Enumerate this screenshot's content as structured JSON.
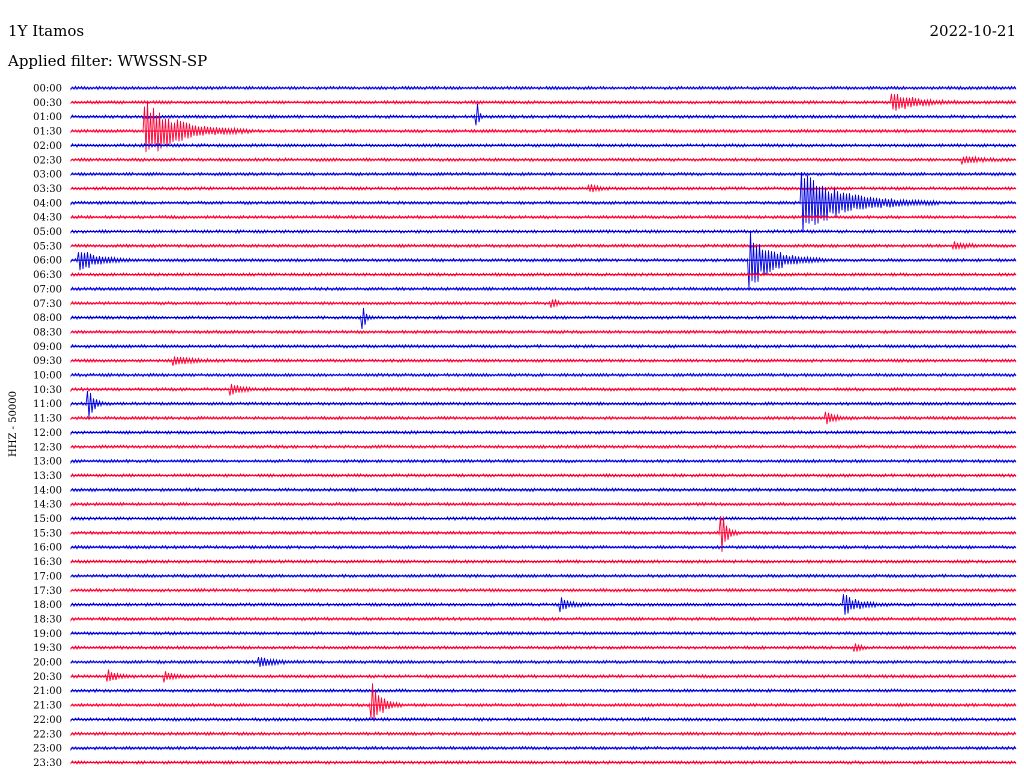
{
  "header": {
    "station": "1Y Itamos",
    "date": "2022-10-21",
    "filter_text": "Applied filter: WWSSN-SP"
  },
  "colors": {
    "even_trace": "#0000e0",
    "odd_trace": "#ff0033",
    "background": "#ffffff"
  },
  "chart_data": {
    "type": "line",
    "ylabel": "HHZ - 50000",
    "row_labels": [
      "00:00",
      "00:30",
      "01:00",
      "01:30",
      "02:00",
      "02:30",
      "03:00",
      "03:30",
      "04:00",
      "04:30",
      "05:00",
      "05:30",
      "06:00",
      "06:30",
      "07:00",
      "07:30",
      "08:00",
      "08:30",
      "09:00",
      "09:30",
      "10:00",
      "10:30",
      "11:00",
      "11:30",
      "12:00",
      "12:30",
      "13:00",
      "13:30",
      "14:00",
      "14:30",
      "15:00",
      "15:30",
      "16:00",
      "16:30",
      "17:00",
      "17:30",
      "18:00",
      "18:30",
      "19:00",
      "19:30",
      "20:00",
      "20:30",
      "21:00",
      "21:30",
      "22:00",
      "22:30",
      "23:00",
      "23:30"
    ],
    "trace_color_order": [
      "blue",
      "red"
    ],
    "events": [
      {
        "row": "00:30",
        "x_fraction": 0.87,
        "amplitude": 0.9,
        "duration": 0.05
      },
      {
        "row": "01:00",
        "x_fraction": 0.43,
        "amplitude": 1.2,
        "duration": 0.004
      },
      {
        "row": "01:30",
        "x_fraction": 0.08,
        "amplitude": 2.8,
        "duration": 0.07
      },
      {
        "row": "02:30",
        "x_fraction": 0.945,
        "amplitude": 0.35,
        "duration": 0.03
      },
      {
        "row": "03:30",
        "x_fraction": 0.55,
        "amplitude": 0.3,
        "duration": 0.02
      },
      {
        "row": "04:00",
        "x_fraction": 0.775,
        "amplitude": 2.8,
        "duration": 0.09
      },
      {
        "row": "05:30",
        "x_fraction": 0.935,
        "amplitude": 0.3,
        "duration": 0.03
      },
      {
        "row": "06:00",
        "x_fraction": 0.01,
        "amplitude": 1.0,
        "duration": 0.04
      },
      {
        "row": "06:00",
        "x_fraction": 0.72,
        "amplitude": 2.6,
        "duration": 0.05
      },
      {
        "row": "07:30",
        "x_fraction": 0.51,
        "amplitude": 0.45,
        "duration": 0.01
      },
      {
        "row": "08:00",
        "x_fraction": 0.31,
        "amplitude": 1.0,
        "duration": 0.005
      },
      {
        "row": "09:30",
        "x_fraction": 0.11,
        "amplitude": 0.45,
        "duration": 0.03
      },
      {
        "row": "10:30",
        "x_fraction": 0.17,
        "amplitude": 0.55,
        "duration": 0.02
      },
      {
        "row": "11:00",
        "x_fraction": 0.02,
        "amplitude": 1.3,
        "duration": 0.01
      },
      {
        "row": "11:30",
        "x_fraction": 0.8,
        "amplitude": 0.55,
        "duration": 0.02
      },
      {
        "row": "15:30",
        "x_fraction": 0.69,
        "amplitude": 2.0,
        "duration": 0.01
      },
      {
        "row": "18:00",
        "x_fraction": 0.52,
        "amplitude": 0.55,
        "duration": 0.02
      },
      {
        "row": "18:00",
        "x_fraction": 0.82,
        "amplitude": 0.9,
        "duration": 0.03
      },
      {
        "row": "19:30",
        "x_fraction": 0.83,
        "amplitude": 0.45,
        "duration": 0.01
      },
      {
        "row": "20:00",
        "x_fraction": 0.2,
        "amplitude": 0.45,
        "duration": 0.03
      },
      {
        "row": "20:30",
        "x_fraction": 0.04,
        "amplitude": 0.55,
        "duration": 0.02
      },
      {
        "row": "20:30",
        "x_fraction": 0.1,
        "amplitude": 0.45,
        "duration": 0.02
      },
      {
        "row": "21:30",
        "x_fraction": 0.32,
        "amplitude": 1.9,
        "duration": 0.02
      }
    ],
    "grid": false,
    "legend": "none"
  }
}
